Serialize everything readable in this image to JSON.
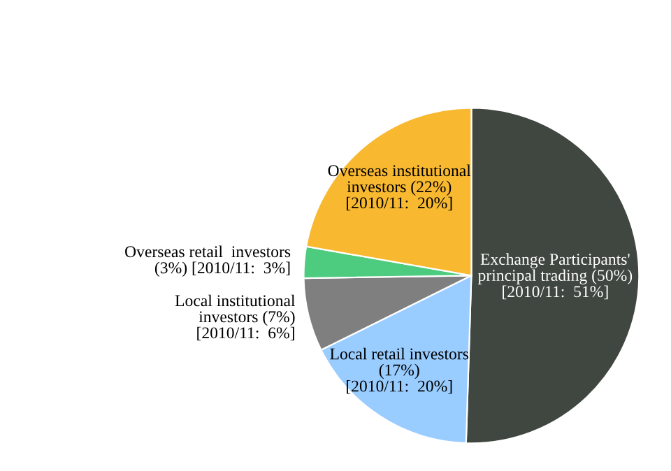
{
  "chart_data": {
    "type": "pie",
    "categories": [
      "Exchange Participants'\nprincipal trading (50%)\n[2010/11:  51%]",
      "Local retail investors\n(17%)\n[2010/11:  20%]",
      "Local institutional\ninvestors (7%)\n[2010/11:  6%]",
      "Overseas retail  investors\n(3%) [2010/11:  3%]",
      "Overseas institutional\ninvestors (22%)\n[2010/11:  20%]"
    ],
    "values": [
      50,
      17,
      7,
      3,
      22
    ],
    "colors": [
      "#404640",
      "#99ccff",
      "#7f7f7f",
      "#4dcc80",
      "#f8b830"
    ]
  }
}
